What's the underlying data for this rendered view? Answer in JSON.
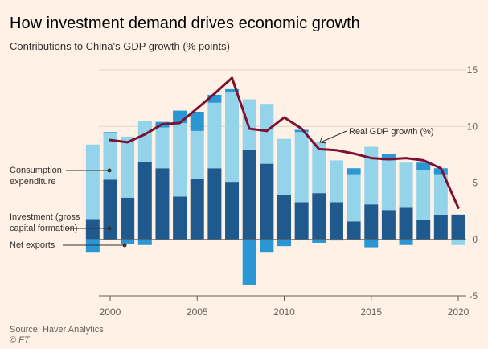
{
  "title": "How investment demand drives economic growth",
  "subtitle": "Contributions to China's GDP growth (% points)",
  "source": "Source: Haver Analytics",
  "copyright": "© FT",
  "colors": {
    "background": "#fff1e5",
    "consumption": "#94d4eb",
    "investment": "#1f5a8f",
    "net_exports": "#2a96d4",
    "gdp_line": "#7c1131",
    "grid": "#e0d4c9",
    "zero_line": "#6b6762",
    "annotation": "#33302e"
  },
  "chart_data": {
    "type": "bar",
    "stacked": true,
    "ylim": [
      -5,
      15
    ],
    "yticks": [
      -5,
      0,
      5,
      10,
      15
    ],
    "xlim": [
      1999.5,
      2020.5
    ],
    "xticks": [
      2000,
      2005,
      2010,
      2015,
      2020
    ],
    "grid": true,
    "categories": [
      1999,
      2000,
      2001,
      2002,
      2003,
      2004,
      2005,
      2006,
      2007,
      2008,
      2009,
      2010,
      2011,
      2012,
      2013,
      2014,
      2015,
      2016,
      2017,
      2018,
      2019,
      2020
    ],
    "series": [
      {
        "name": "Consumption expenditure",
        "key": "consumption",
        "values": [
          6.6,
          4.1,
          5.4,
          3.6,
          3.6,
          6.5,
          4.2,
          5.8,
          7.9,
          4.5,
          5.3,
          5.0,
          6.2,
          4.5,
          3.7,
          4.1,
          5.1,
          4.4,
          4.0,
          4.4,
          3.5,
          -0.5
        ]
      },
      {
        "name": "Investment (gross capital formation)",
        "key": "investment",
        "values": [
          1.8,
          5.3,
          3.7,
          6.9,
          6.3,
          3.8,
          5.4,
          6.3,
          5.1,
          7.9,
          6.7,
          3.9,
          3.3,
          4.1,
          3.3,
          1.6,
          3.1,
          2.6,
          2.8,
          1.7,
          2.2,
          2.2
        ]
      },
      {
        "name": "Net exports",
        "key": "net_exports",
        "values": [
          -1.1,
          0.1,
          -0.4,
          -0.5,
          0.5,
          1.1,
          1.7,
          0.7,
          0.3,
          -4.0,
          -1.1,
          -0.6,
          0.2,
          -0.3,
          -0.1,
          0.6,
          -0.7,
          0.6,
          -0.5,
          0.7,
          0.6,
          0.0
        ]
      }
    ],
    "line": {
      "name": "Real GDP growth (%)",
      "x": [
        2000,
        2001,
        2002,
        2003,
        2004,
        2005,
        2006,
        2007,
        2008,
        2009,
        2010,
        2011,
        2012,
        2013,
        2014,
        2015,
        2016,
        2017,
        2018,
        2019,
        2020
      ],
      "values": [
        8.8,
        8.6,
        9.3,
        10.2,
        10.3,
        11.6,
        12.9,
        14.3,
        9.8,
        9.6,
        10.8,
        9.8,
        8.0,
        7.9,
        7.6,
        7.2,
        7.1,
        7.2,
        7.0,
        6.3,
        2.8
      ]
    },
    "annotations": {
      "consumption": [
        "Consumption",
        "expenditure"
      ],
      "investment": [
        "Investment (gross",
        "capital formation)"
      ],
      "net_exports": [
        "Net exports"
      ],
      "gdp": "Real GDP growth (%)"
    }
  }
}
